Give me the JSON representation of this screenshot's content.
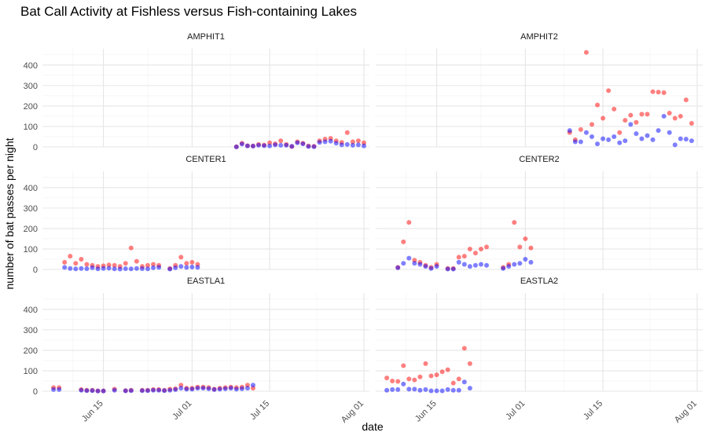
{
  "chart_data": {
    "type": "scatter",
    "title": "Bat Call Activity at Fishless versus Fish-containing Lakes",
    "xlabel": "date",
    "ylabel": "number of bat passes per night",
    "ylim": [
      0,
      480
    ],
    "yticks": [
      0,
      100,
      200,
      300,
      400
    ],
    "xlim": [
      "2019-06-04",
      "2019-08-02"
    ],
    "xticks": [
      {
        "date": "2019-06-15",
        "label": "Jun 15"
      },
      {
        "date": "2019-07-01",
        "label": "Jul 01"
      },
      {
        "date": "2019-07-15",
        "label": "Jul 15"
      },
      {
        "date": "2019-08-01",
        "label": "Aug 01"
      }
    ],
    "grid": true,
    "legend": "none",
    "colors": {
      "series_a": "#ff0000",
      "series_b": "#0000ff",
      "overlap": "#8000aa"
    },
    "facets": [
      {
        "name": "AMPHIT1",
        "start": "2019-07-09",
        "series_a": [
          1,
          18,
          6,
          5,
          12,
          9,
          20,
          15,
          30,
          12,
          2,
          25,
          18,
          5,
          3,
          30,
          38,
          42,
          30,
          22,
          70,
          25,
          30,
          20
        ],
        "series_b": [
          0,
          14,
          5,
          4,
          8,
          6,
          5,
          10,
          8,
          8,
          3,
          20,
          15,
          2,
          1,
          22,
          25,
          28,
          18,
          10,
          12,
          8,
          10,
          5
        ]
      },
      {
        "name": "AMPHIT2",
        "start": "2019-07-09",
        "series_a": [
          70,
          35,
          85,
          462,
          110,
          205,
          140,
          275,
          185,
          70,
          130,
          155,
          120,
          160,
          160,
          270,
          268,
          265,
          165,
          140,
          150,
          230,
          115
        ],
        "series_b": [
          80,
          25,
          25,
          70,
          50,
          15,
          40,
          35,
          50,
          20,
          30,
          110,
          65,
          40,
          55,
          35,
          80,
          150,
          70,
          10,
          40,
          38,
          30
        ]
      },
      {
        "name": "CENTER1",
        "start": "2019-06-08",
        "series_a": [
          35,
          65,
          30,
          50,
          25,
          20,
          15,
          18,
          22,
          20,
          15,
          30,
          105,
          40,
          15,
          20,
          25,
          20,
          null,
          5,
          20,
          60,
          30,
          35,
          25
        ],
        "series_b": [
          10,
          5,
          3,
          5,
          4,
          8,
          3,
          5,
          6,
          3,
          2,
          4,
          3,
          5,
          4,
          3,
          8,
          10,
          null,
          2,
          8,
          15,
          10,
          12,
          10
        ]
      },
      {
        "name": "CENTER2",
        "start": "2019-06-08",
        "series_a": [
          10,
          135,
          230,
          45,
          35,
          20,
          10,
          25,
          null,
          5,
          5,
          60,
          65,
          100,
          80,
          100,
          110,
          null,
          null,
          10,
          25,
          230,
          110,
          150,
          105
        ],
        "series_b": [
          8,
          30,
          55,
          30,
          25,
          15,
          5,
          15,
          null,
          2,
          2,
          35,
          25,
          15,
          20,
          25,
          20,
          null,
          null,
          5,
          15,
          25,
          30,
          50,
          35
        ]
      },
      {
        "name": "EASTLA1",
        "start": "2019-06-06",
        "series_a": [
          18,
          18,
          null,
          null,
          null,
          8,
          5,
          5,
          2,
          2,
          null,
          10,
          null,
          3,
          5,
          null,
          5,
          5,
          8,
          8,
          5,
          10,
          12,
          30,
          15,
          15,
          20,
          20,
          18,
          10,
          15,
          18,
          20,
          18,
          20,
          30,
          15
        ],
        "series_b": [
          8,
          8,
          null,
          null,
          null,
          5,
          3,
          3,
          1,
          1,
          null,
          5,
          null,
          2,
          3,
          null,
          3,
          3,
          5,
          5,
          3,
          5,
          8,
          15,
          10,
          10,
          15,
          15,
          12,
          8,
          10,
          12,
          15,
          10,
          12,
          15,
          30
        ]
      },
      {
        "name": "EASTLA2",
        "start": "2019-06-06",
        "series_a": [
          65,
          50,
          48,
          125,
          60,
          55,
          70,
          135,
          75,
          80,
          95,
          105,
          40,
          60,
          210,
          135
        ],
        "series_b": [
          5,
          8,
          8,
          35,
          10,
          10,
          5,
          8,
          2,
          2,
          2,
          8,
          5,
          5,
          45,
          15
        ]
      }
    ]
  }
}
